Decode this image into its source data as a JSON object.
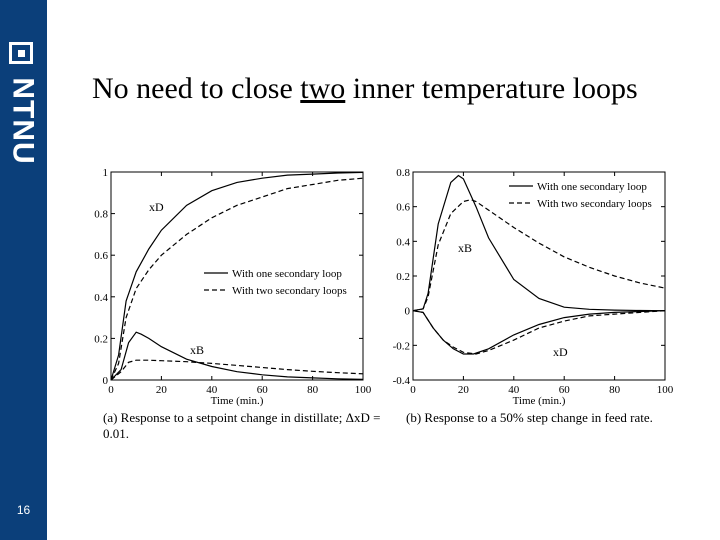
{
  "slide": {
    "title_before": "No need to close ",
    "title_underlined": "two",
    "title_after": " inner temperature loops",
    "page_number": "16",
    "logo_text": "NTNU"
  },
  "chart_data": [
    {
      "type": "line",
      "panel": "a",
      "caption": "(a) Response to a setpoint change in distillate; ΔxD = 0.01.",
      "xlabel": "Time (min.)",
      "ylabel": "",
      "xlim": [
        0,
        100
      ],
      "ylim": [
        0,
        1
      ],
      "xticks": [
        0,
        20,
        40,
        60,
        80,
        100
      ],
      "yticks": [
        0,
        0.2,
        0.4,
        0.6,
        0.8,
        1
      ],
      "legend_position": "center-right",
      "annotations": [
        "xD",
        "xB"
      ],
      "series": [
        {
          "name": "With one secondary loop",
          "variable": "xD",
          "style": "solid",
          "x": [
            0,
            3,
            6,
            10,
            15,
            20,
            30,
            40,
            50,
            60,
            70,
            80,
            90,
            100
          ],
          "y": [
            0,
            0.12,
            0.38,
            0.52,
            0.63,
            0.72,
            0.84,
            0.91,
            0.95,
            0.97,
            0.985,
            0.99,
            0.995,
            0.998
          ]
        },
        {
          "name": "With two secondary loops",
          "variable": "xD",
          "style": "dashed",
          "x": [
            0,
            3,
            6,
            10,
            15,
            20,
            30,
            40,
            50,
            60,
            70,
            80,
            90,
            100
          ],
          "y": [
            0,
            0.08,
            0.3,
            0.44,
            0.53,
            0.6,
            0.7,
            0.78,
            0.84,
            0.88,
            0.92,
            0.94,
            0.96,
            0.97
          ]
        },
        {
          "name": "With one secondary loop",
          "variable": "xB",
          "style": "solid",
          "x": [
            0,
            4,
            7,
            10,
            12,
            15,
            20,
            30,
            40,
            50,
            60,
            70,
            80,
            90,
            100
          ],
          "y": [
            0,
            0.05,
            0.18,
            0.23,
            0.22,
            0.2,
            0.16,
            0.1,
            0.065,
            0.04,
            0.025,
            0.015,
            0.01,
            0.006,
            0.003
          ]
        },
        {
          "name": "With two secondary loops",
          "variable": "xB",
          "style": "dashed",
          "x": [
            0,
            4,
            7,
            10,
            15,
            20,
            30,
            40,
            50,
            60,
            70,
            80,
            90,
            100
          ],
          "y": [
            0,
            0.04,
            0.085,
            0.095,
            0.095,
            0.093,
            0.088,
            0.08,
            0.07,
            0.06,
            0.05,
            0.042,
            0.035,
            0.03
          ]
        }
      ]
    },
    {
      "type": "line",
      "panel": "b",
      "caption": "(b) Response to a 50% step change in feed rate.",
      "xlabel": "Time (min.)",
      "ylabel": "",
      "xlim": [
        0,
        100
      ],
      "ylim": [
        -0.4,
        0.8
      ],
      "xticks": [
        0,
        20,
        40,
        60,
        80,
        100
      ],
      "yticks": [
        -0.4,
        -0.2,
        0,
        0.2,
        0.4,
        0.6,
        0.8
      ],
      "legend_position": "top-right",
      "annotations": [
        "xB",
        "xD"
      ],
      "series": [
        {
          "name": "With one secondary loop",
          "variable": "xB",
          "style": "solid",
          "x": [
            0,
            4,
            6,
            10,
            15,
            18,
            20,
            25,
            30,
            40,
            50,
            60,
            70,
            80,
            90,
            100
          ],
          "y": [
            0,
            0.01,
            0.1,
            0.5,
            0.74,
            0.78,
            0.76,
            0.6,
            0.42,
            0.18,
            0.07,
            0.02,
            0.008,
            0.003,
            0.001,
            0
          ]
        },
        {
          "name": "With two secondary loops",
          "variable": "xB",
          "style": "dashed",
          "x": [
            0,
            4,
            6,
            10,
            15,
            20,
            23,
            25,
            30,
            40,
            50,
            60,
            70,
            80,
            90,
            100
          ],
          "y": [
            0,
            0.01,
            0.08,
            0.38,
            0.56,
            0.63,
            0.64,
            0.63,
            0.58,
            0.48,
            0.39,
            0.31,
            0.25,
            0.2,
            0.16,
            0.13
          ]
        },
        {
          "name": "With one secondary loop",
          "variable": "xD",
          "style": "solid",
          "x": [
            0,
            4,
            8,
            12,
            16,
            20,
            24,
            30,
            40,
            50,
            60,
            70,
            80,
            90,
            100
          ],
          "y": [
            0,
            -0.01,
            -0.1,
            -0.17,
            -0.22,
            -0.25,
            -0.25,
            -0.22,
            -0.14,
            -0.08,
            -0.04,
            -0.02,
            -0.01,
            -0.005,
            0
          ]
        },
        {
          "name": "With two secondary loops",
          "variable": "xD",
          "style": "dashed",
          "x": [
            0,
            4,
            8,
            12,
            16,
            20,
            25,
            30,
            40,
            50,
            60,
            70,
            80,
            90,
            100
          ],
          "y": [
            0,
            -0.01,
            -0.1,
            -0.17,
            -0.21,
            -0.24,
            -0.25,
            -0.23,
            -0.17,
            -0.1,
            -0.06,
            -0.03,
            -0.02,
            -0.01,
            0
          ]
        }
      ]
    }
  ]
}
